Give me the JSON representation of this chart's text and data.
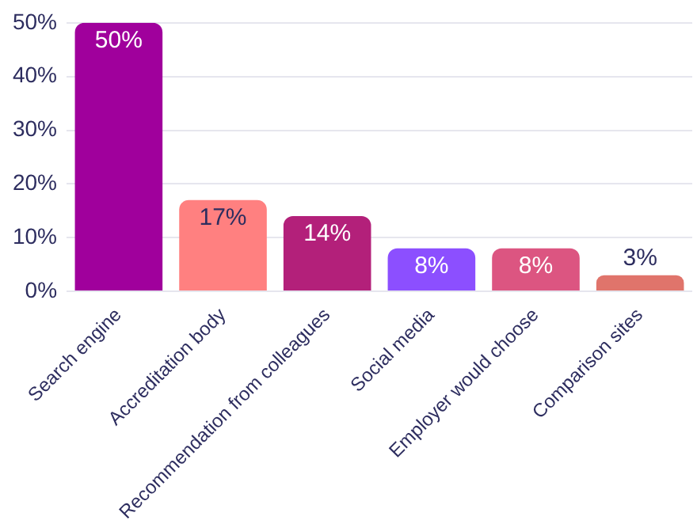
{
  "chart_data": {
    "type": "bar",
    "categories": [
      "Search engine",
      "Accreditation body",
      "Recommendation from colleagues",
      "Social media",
      "Employer would choose",
      "Comparison sites"
    ],
    "values": [
      50,
      17,
      14,
      8,
      8,
      3
    ],
    "colors": [
      "#a0009c",
      "#ff8080",
      "#b3207a",
      "#8c4fff",
      "#dc5581",
      "#e0746b"
    ],
    "value_labels": [
      "50%",
      "17%",
      "14%",
      "8%",
      "8%",
      "3%"
    ],
    "ylim": [
      0,
      50
    ],
    "yticks": [
      {
        "value": 0,
        "label": "0%"
      },
      {
        "value": 10,
        "label": "10%"
      },
      {
        "value": 20,
        "label": "20%"
      },
      {
        "value": 30,
        "label": "30%"
      },
      {
        "value": 40,
        "label": "40%"
      },
      {
        "value": 50,
        "label": "50%"
      }
    ],
    "grid": "y",
    "legend": false
  }
}
